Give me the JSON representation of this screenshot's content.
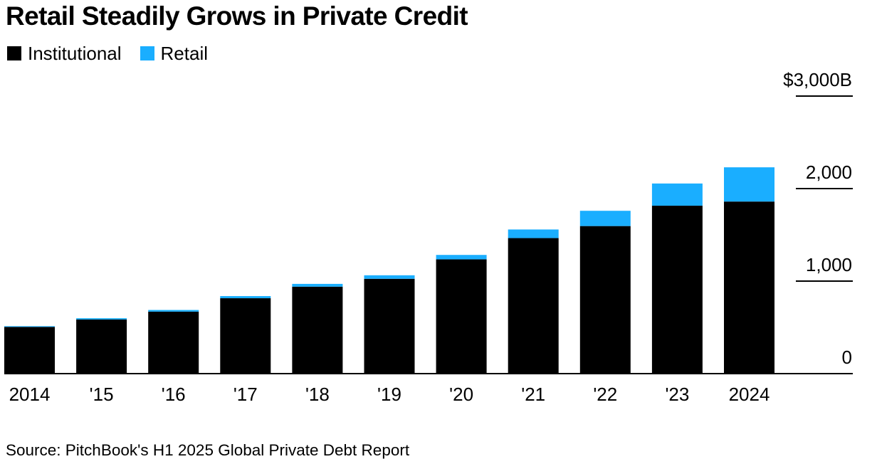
{
  "chart_data": {
    "type": "bar",
    "stacked": true,
    "title": "Retail Steadily Grows in Private Credit",
    "categories": [
      "2014",
      "'15",
      "'16",
      "'17",
      "'18",
      "'19",
      "'20",
      "'21",
      "'22",
      "'23",
      "2024"
    ],
    "series": [
      {
        "name": "Institutional",
        "color": "#000000",
        "values": [
          505,
          585,
          670,
          815,
          940,
          1025,
          1235,
          1465,
          1595,
          1815,
          1860
        ]
      },
      {
        "name": "Retail",
        "color": "#1aaeff",
        "values": [
          8,
          14,
          18,
          23,
          30,
          38,
          48,
          93,
          165,
          240,
          370
        ]
      }
    ],
    "y_ticks": [
      {
        "value": 0,
        "label": "0"
      },
      {
        "value": 1000,
        "label": "1,000"
      },
      {
        "value": 2000,
        "label": "2,000"
      },
      {
        "value": 3000,
        "label": "$3,000B"
      }
    ],
    "ylim": [
      0,
      3000
    ],
    "xlabel": "",
    "ylabel": "",
    "legend_position": "top-left",
    "source": "Source: PitchBook's H1 2025 Global Private Debt Report"
  }
}
